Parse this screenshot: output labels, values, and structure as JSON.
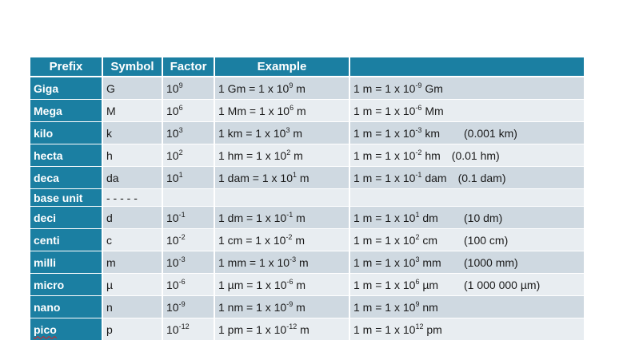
{
  "colors": {
    "header": "#1b7fa2",
    "row_odd": "#cfd9e1",
    "row_even": "#e8edf1"
  },
  "headers": [
    "Prefix",
    "Symbol",
    "Factor",
    "Example",
    ""
  ],
  "rows": [
    {
      "prefix": "Giga",
      "symbol": "G",
      "factor": {
        "base": "10",
        "exp": "9"
      },
      "example": {
        "pre": "1 Gm = 1 x 10",
        "exp": "9",
        "post": " m"
      },
      "conversion": {
        "pre": "1 m = 1 x 10",
        "exp": "-9",
        "post": " Gm",
        "note": ""
      }
    },
    {
      "prefix": "Mega",
      "symbol": "M",
      "factor": {
        "base": "10",
        "exp": "6"
      },
      "example": {
        "pre": "1 Mm = 1 x 10",
        "exp": "6",
        "post": " m"
      },
      "conversion": {
        "pre": "1 m = 1 x 10",
        "exp": "-6",
        "post": " Mm",
        "note": ""
      }
    },
    {
      "prefix": "kilo",
      "symbol": "k",
      "factor": {
        "base": "10",
        "exp": "3"
      },
      "example": {
        "pre": "1 km = 1 x 10",
        "exp": "3",
        "post": " m"
      },
      "conversion": {
        "pre": "1 m = 1 x 10",
        "exp": "-3",
        "post": " km",
        "note": "(0.001 km)"
      }
    },
    {
      "prefix": "hecta",
      "symbol": "h",
      "factor": {
        "base": "10",
        "exp": "2"
      },
      "example": {
        "pre": "1 hm = 1 x 10",
        "exp": "2",
        "post": " m"
      },
      "conversion": {
        "pre": "1 m = 1 x 10",
        "exp": "-2",
        "post": " hm",
        "note": "(0.01 hm)"
      }
    },
    {
      "prefix": "deca",
      "symbol": "da",
      "factor": {
        "base": "10",
        "exp": "1"
      },
      "example": {
        "pre": "1 dam = 1 x 10",
        "exp": "1",
        "post": " m"
      },
      "conversion": {
        "pre": "1 m = 1 x 10",
        "exp": "-1",
        "post": " dam",
        "note": "(0.1 dam)"
      }
    },
    {
      "prefix": "base unit",
      "symbol": "- - - - -",
      "factor": null,
      "example": null,
      "conversion": null
    },
    {
      "prefix": "deci",
      "symbol": "d",
      "factor": {
        "base": "10",
        "exp": "-1"
      },
      "example": {
        "pre": "1 dm = 1 x 10",
        "exp": "-1",
        "post": " m"
      },
      "conversion": {
        "pre": "1 m = 1 x 10",
        "exp": "1",
        "post": " dm",
        "note": "(10 dm)"
      }
    },
    {
      "prefix": "centi",
      "symbol": "c",
      "factor": {
        "base": "10",
        "exp": "-2"
      },
      "example": {
        "pre": "1 cm = 1 x 10",
        "exp": "-2",
        "post": " m"
      },
      "conversion": {
        "pre": "1 m = 1 x 10",
        "exp": "2",
        "post": " cm",
        "note": "(100 cm)"
      }
    },
    {
      "prefix": "milli",
      "symbol": "m",
      "factor": {
        "base": "10",
        "exp": "-3"
      },
      "example": {
        "pre": "1 mm = 1 x 10",
        "exp": "-3",
        "post": " m"
      },
      "conversion": {
        "pre": "1 m = 1 x 10",
        "exp": "3",
        "post": " mm",
        "note": "(1000 mm)"
      }
    },
    {
      "prefix": "micro",
      "symbol": "µ",
      "factor": {
        "base": "10",
        "exp": "-6"
      },
      "example": {
        "pre": "1 µm = 1 x 10",
        "exp": "-6",
        "post": " m"
      },
      "conversion": {
        "pre": "1 m = 1 x 10",
        "exp": "6",
        "post": " µm",
        "note": "(1 000 000 µm)"
      }
    },
    {
      "prefix": "nano",
      "symbol": "n",
      "factor": {
        "base": "10",
        "exp": "-9"
      },
      "example": {
        "pre": "1 nm = 1 x 10",
        "exp": "-9",
        "post": " m"
      },
      "conversion": {
        "pre": "1 m = 1 x 10",
        "exp": "9",
        "post": " nm",
        "note": ""
      }
    },
    {
      "prefix": "pico",
      "symbol": "p",
      "factor": {
        "base": "10",
        "exp": "-12"
      },
      "example": {
        "pre": "1 pm = 1 x 10",
        "exp": "-12",
        "post": " m"
      },
      "conversion": {
        "pre": "1 m = 1 x 10",
        "exp": "12",
        "post": " pm",
        "note": ""
      }
    }
  ]
}
